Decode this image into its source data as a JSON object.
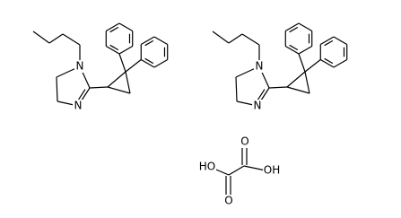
{
  "molecules": [
    {
      "atoms": [
        "N",
        "N"
      ]
    },
    {
      "atoms": [
        "N",
        "N"
      ]
    }
  ],
  "oxalic_acid": {
    "atoms": [
      "HO",
      "OH",
      "O",
      "O"
    ]
  }
}
